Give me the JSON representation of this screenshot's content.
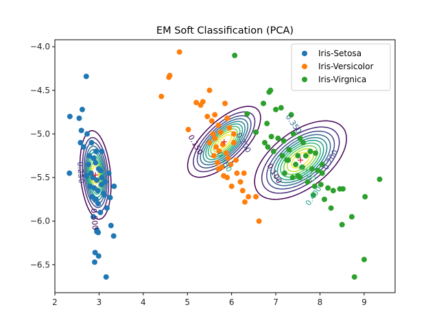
{
  "chart_data": {
    "type": "scatter",
    "title": "EM Soft Classification (PCA)",
    "xlabel": "",
    "ylabel": "",
    "xlim": [
      2.0,
      9.7
    ],
    "ylim": [
      -6.82,
      -3.92
    ],
    "xticks": [
      2,
      3,
      4,
      5,
      6,
      7,
      8,
      9
    ],
    "yticks": [
      -4.0,
      -4.5,
      -5.0,
      -5.5,
      -6.0,
      -6.5
    ],
    "xtick_labels": [
      "2",
      "3",
      "4",
      "5",
      "6",
      "7",
      "8",
      "9"
    ],
    "ytick_labels": [
      "−4.0",
      "−4.5",
      "−5.0",
      "−5.5",
      "−6.0",
      "−6.5"
    ],
    "legend_position": "upper right",
    "series": [
      {
        "name": "Iris-Setosa",
        "color": "#1f77b4",
        "x": [
          2.34,
          2.71,
          2.62,
          2.55,
          2.33,
          2.6,
          2.73,
          2.58,
          2.65,
          2.83,
          2.93,
          2.78,
          2.88,
          2.92,
          2.76,
          2.99,
          3.03,
          2.82,
          2.72,
          2.86,
          2.95,
          3.14,
          3.05,
          2.8,
          2.89,
          2.97,
          3.22,
          3.1,
          2.84,
          2.93,
          2.98,
          3.06,
          3.18,
          3.03,
          2.87,
          3.25,
          3.12,
          2.95,
          3.27,
          3.06,
          3.33,
          2.99,
          3.34,
          2.98,
          2.95,
          2.9,
          2.91,
          3.16
        ],
        "y": [
          -4.8,
          -4.34,
          -4.72,
          -4.82,
          -5.45,
          -4.96,
          -5.0,
          -5.1,
          -5.15,
          -5.1,
          -5.2,
          -5.25,
          -5.28,
          -5.33,
          -5.35,
          -5.4,
          -5.42,
          -5.45,
          -5.48,
          -5.5,
          -5.53,
          -5.55,
          -5.58,
          -5.6,
          -5.62,
          -5.65,
          -5.45,
          -5.68,
          -5.72,
          -5.75,
          -5.8,
          -5.5,
          -5.85,
          -5.9,
          -5.95,
          -5.73,
          -5.7,
          -6.1,
          -6.05,
          -5.2,
          -6.17,
          -6.4,
          -5.6,
          -6.13,
          -6.12,
          -6.47,
          -6.36,
          -6.64
        ]
      },
      {
        "name": "Iris-Versicolor",
        "color": "#ff7f0e",
        "x": [
          4.82,
          4.41,
          4.6,
          4.58,
          5.2,
          5.3,
          5.35,
          5.5,
          5.62,
          5.85,
          5.55,
          5.7,
          5.9,
          5.58,
          5.75,
          5.62,
          5.95,
          6.05,
          5.8,
          5.65,
          5.72,
          5.88,
          5.6,
          5.92,
          6.1,
          5.68,
          5.78,
          5.02,
          5.45,
          5.98,
          5.5,
          6.12,
          5.82,
          5.9,
          6.2,
          5.7,
          6.25,
          6.0,
          6.38,
          6.3,
          6.55,
          6.62,
          6.28,
          6.05,
          5.72
        ],
        "y": [
          -4.06,
          -4.57,
          -4.33,
          -4.35,
          -4.64,
          -4.67,
          -4.63,
          -4.5,
          -4.78,
          -4.65,
          -4.85,
          -4.9,
          -4.82,
          -5.0,
          -4.98,
          -5.05,
          -4.93,
          -5.1,
          -5.12,
          -5.15,
          -5.2,
          -5.22,
          -5.25,
          -5.28,
          -5.3,
          -5.33,
          -5.38,
          -4.95,
          -4.8,
          -5.35,
          -5.1,
          -5.45,
          -5.48,
          -5.5,
          -5.55,
          -5.4,
          -5.65,
          -5.6,
          -5.72,
          -5.78,
          -5.72,
          -6.0,
          -5.45,
          -5.0,
          -5.2
        ]
      },
      {
        "name": "Iris-Virgnica",
        "color": "#2ca02c",
        "x": [
          6.07,
          6.85,
          6.88,
          6.72,
          7.0,
          7.12,
          7.35,
          6.35,
          6.55,
          6.8,
          6.9,
          7.05,
          7.18,
          7.4,
          7.55,
          7.3,
          7.62,
          7.78,
          7.9,
          7.68,
          6.75,
          6.82,
          6.95,
          7.15,
          7.28,
          7.45,
          7.6,
          7.82,
          7.95,
          8.05,
          7.2,
          7.38,
          7.55,
          7.72,
          7.88,
          8.02,
          8.18,
          8.3,
          8.45,
          8.5,
          7.85,
          8.1,
          8.25,
          8.72,
          9.02,
          8.52,
          9.35,
          9.0,
          8.78,
          7.25,
          7.5,
          8.05,
          7.5
        ],
        "y": [
          -4.1,
          -4.52,
          -4.5,
          -4.65,
          -4.72,
          -4.7,
          -4.78,
          -4.77,
          -4.98,
          -4.88,
          -5.03,
          -5.05,
          -5.08,
          -5.0,
          -5.05,
          -5.18,
          -5.1,
          -5.2,
          -5.22,
          -5.25,
          -5.1,
          -5.15,
          -5.2,
          -5.25,
          -5.3,
          -5.35,
          -5.38,
          -5.4,
          -5.42,
          -5.45,
          -5.45,
          -5.5,
          -5.5,
          -5.55,
          -5.6,
          -5.58,
          -5.62,
          -5.65,
          -5.63,
          -6.04,
          -5.7,
          -5.75,
          -5.85,
          -5.95,
          -5.72,
          -5.63,
          -5.52,
          -6.44,
          -6.64,
          -5.3,
          -5.48,
          -5.35,
          -5.25
        ]
      }
    ],
    "means": [
      {
        "x": 2.92,
        "y": -5.47,
        "color": "#d62728"
      },
      {
        "x": 5.83,
        "y": -5.09,
        "color": "#d62728"
      },
      {
        "x": 7.56,
        "y": -5.3,
        "color": "#d62728"
      }
    ],
    "gaussians": [
      {
        "cx": 2.92,
        "cy": -5.47,
        "a": 0.35,
        "b": 1.25,
        "angle": -4
      },
      {
        "cx": 5.83,
        "cy": -5.09,
        "a": 0.52,
        "b": 1.2,
        "angle": 38
      },
      {
        "cx": 7.56,
        "cy": -5.3,
        "a": 0.73,
        "b": 1.35,
        "angle": 43
      }
    ],
    "contour_levels": [
      0.05,
      0.1,
      0.15,
      0.2,
      0.25,
      0.3,
      0.35,
      0.4,
      0.45,
      0.5
    ],
    "contour_colors": [
      "#440154",
      "#482878",
      "#3e4989",
      "#31688e",
      "#26828e",
      "#1f9e89",
      "#35b779",
      "#6ece58",
      "#b5de2b",
      "#fde725"
    ],
    "contour_label_texts": [
      {
        "text": "0.250",
        "color": "#3e4989"
      },
      {
        "text": "0.500",
        "color": "#440154"
      },
      {
        "text": "0.150",
        "color": "#440154"
      },
      {
        "text": "0.300",
        "color": "#3e4989"
      },
      {
        "text": "0.450",
        "color": "#1f9e89"
      },
      {
        "text": "0.100",
        "color": "#440154"
      },
      {
        "text": "0.200",
        "color": "#3e4989"
      },
      {
        "text": "0.400",
        "color": "#1f9e89"
      },
      {
        "text": "0.350",
        "color": "#31688e"
      },
      {
        "text": "0.500",
        "color": "#35b779"
      }
    ]
  }
}
